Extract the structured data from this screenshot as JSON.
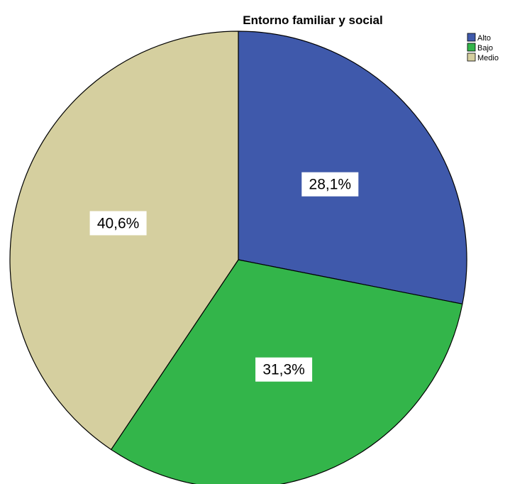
{
  "chart_data": {
    "type": "pie",
    "title": "Entorno familiar y social",
    "categories": [
      "Alto",
      "Bajo",
      "Medio"
    ],
    "values": [
      28.1,
      31.3,
      40.6
    ],
    "data_labels": [
      "28,1%",
      "31,3%",
      "40,6%"
    ],
    "colors": [
      "#3f59ab",
      "#33b54a",
      "#d5cf9f"
    ],
    "start_angle_deg": 0,
    "direction": "clockwise",
    "legend": {
      "placement": "top-right",
      "entries": [
        "Alto",
        "Bajo",
        "Medio"
      ]
    }
  }
}
